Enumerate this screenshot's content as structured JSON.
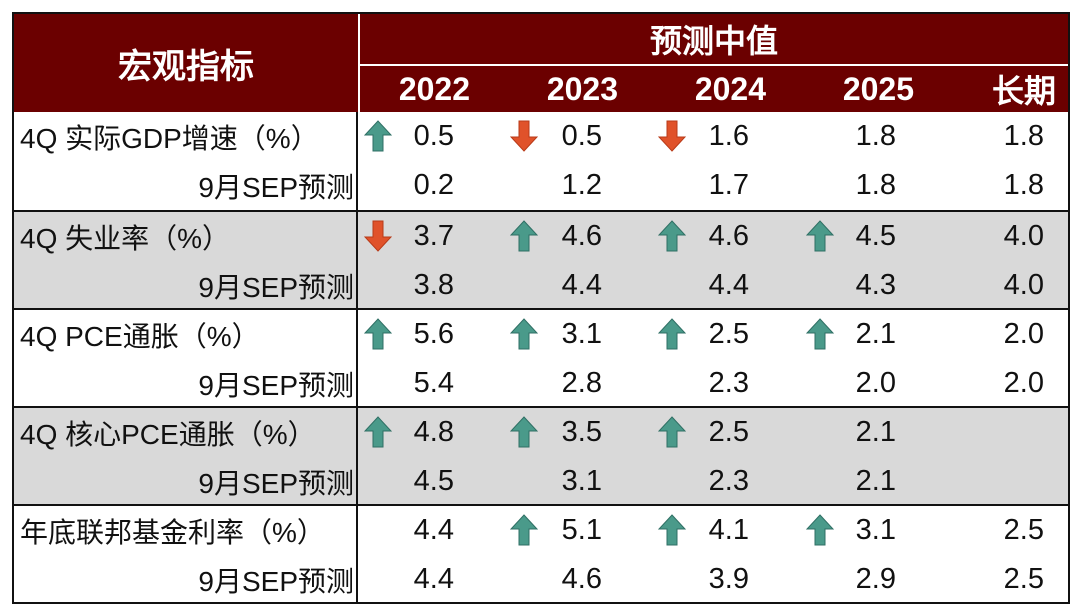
{
  "header": {
    "main": "宏观指标",
    "forecast": "预测中值",
    "years": [
      "2022",
      "2023",
      "2024",
      "2025",
      "长期"
    ]
  },
  "colors": {
    "header_bg": "#6b0000",
    "up_arrow": "#4a9a8a",
    "down_arrow": "#e0522a",
    "shade": "#d9d9d9"
  },
  "groups": [
    {
      "label": "4Q 实际GDP增速（%）",
      "sub_label": "9月SEP预测",
      "values": [
        "0.5",
        "0.5",
        "1.6",
        "1.8",
        "1.8"
      ],
      "arrows": [
        "up",
        "down",
        "down",
        "",
        ""
      ],
      "sep": [
        "0.2",
        "1.2",
        "1.7",
        "1.8",
        "1.8"
      ]
    },
    {
      "label": "4Q 失业率（%）",
      "sub_label": "9月SEP预测",
      "values": [
        "3.7",
        "4.6",
        "4.6",
        "4.5",
        "4.0"
      ],
      "arrows": [
        "down",
        "up",
        "up",
        "up",
        ""
      ],
      "sep": [
        "3.8",
        "4.4",
        "4.4",
        "4.3",
        "4.0"
      ]
    },
    {
      "label": "4Q PCE通胀（%）",
      "sub_label": "9月SEP预测",
      "values": [
        "5.6",
        "3.1",
        "2.5",
        "2.1",
        "2.0"
      ],
      "arrows": [
        "up",
        "up",
        "up",
        "up",
        ""
      ],
      "sep": [
        "5.4",
        "2.8",
        "2.3",
        "2.0",
        "2.0"
      ]
    },
    {
      "label": "4Q 核心PCE通胀（%）",
      "sub_label": "9月SEP预测",
      "values": [
        "4.8",
        "3.5",
        "2.5",
        "2.1",
        ""
      ],
      "arrows": [
        "up",
        "up",
        "up",
        "",
        ""
      ],
      "sep": [
        "4.5",
        "3.1",
        "2.3",
        "2.1",
        ""
      ]
    },
    {
      "label": "年底联邦基金利率（%）",
      "sub_label": "9月SEP预测",
      "values": [
        "4.4",
        "5.1",
        "4.1",
        "3.1",
        "2.5"
      ],
      "arrows": [
        "",
        "up",
        "up",
        "up",
        ""
      ],
      "sep": [
        "4.4",
        "4.6",
        "3.9",
        "2.9",
        "2.5"
      ]
    }
  ]
}
